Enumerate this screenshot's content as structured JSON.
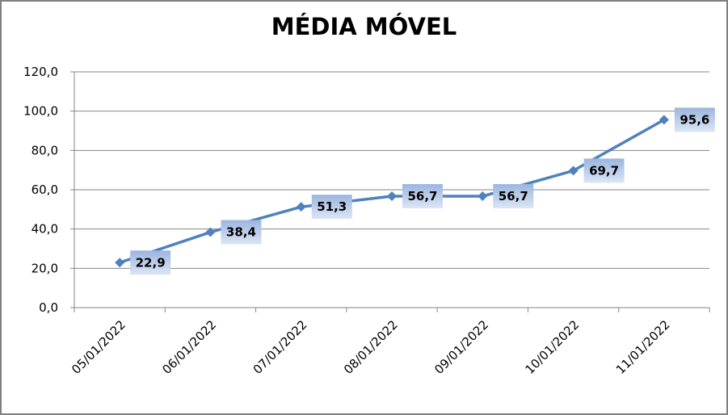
{
  "chart_data": {
    "type": "line",
    "title": "MÉDIA MÓVEL",
    "xlabel": "",
    "ylabel": "",
    "categories": [
      "05/01/2022",
      "06/01/2022",
      "07/01/2022",
      "08/01/2022",
      "09/01/2022",
      "10/01/2022",
      "11/01/2022"
    ],
    "series": [
      {
        "name": "Média Móvel",
        "values": [
          22.9,
          38.4,
          51.3,
          56.7,
          56.7,
          69.7,
          95.6
        ],
        "color": "#4f81bd"
      }
    ],
    "data_labels": [
      "22,9",
      "38,4",
      "51,3",
      "56,7",
      "56,7",
      "69,7",
      "95,6"
    ],
    "y_ticks": [
      "0,0",
      "20,0",
      "40,0",
      "60,0",
      "80,0",
      "100,0",
      "120,0"
    ],
    "ylim": [
      0,
      120
    ],
    "grid": true,
    "legend": "none"
  }
}
